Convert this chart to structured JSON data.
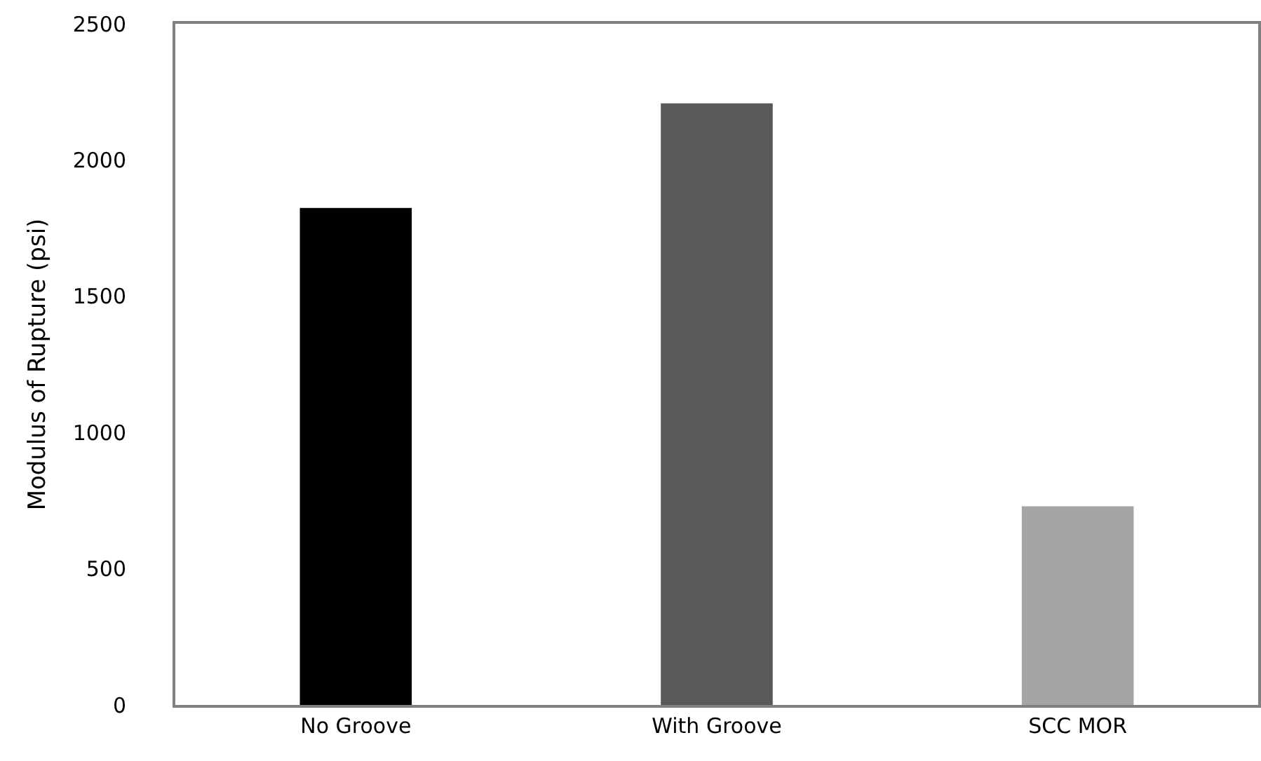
{
  "chart_data": {
    "type": "bar",
    "ylabel": "Modulus of Rupture (psi)",
    "categories": [
      "No Groove",
      "With Groove",
      "SCC MOR"
    ],
    "values": [
      1824,
      2208,
      729
    ],
    "colors": [
      "#000000",
      "#595959",
      "#a5a5a5"
    ],
    "ylim": [
      0,
      2500
    ],
    "yticks": [
      0,
      500,
      1000,
      1500,
      2000,
      2500
    ]
  }
}
